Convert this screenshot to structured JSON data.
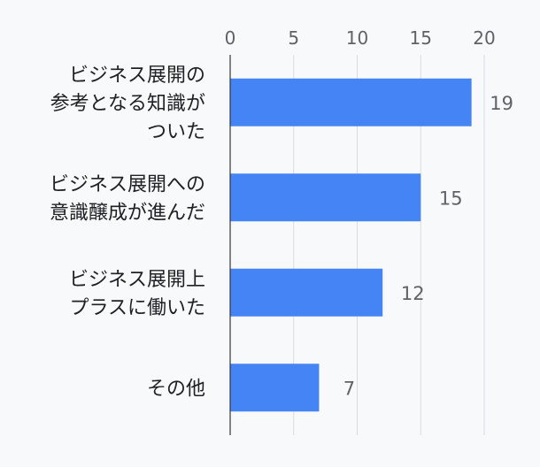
{
  "chart_data": {
    "type": "bar",
    "orientation": "horizontal",
    "categories": [
      [
        "ビジネス展開の",
        "参考となる知識が",
        "ついた"
      ],
      [
        "ビジネス展開への",
        "意識醸成が進んだ"
      ],
      [
        "ビジネス展開上",
        "プラスに働いた"
      ],
      [
        "その他"
      ]
    ],
    "values": [
      19,
      15,
      12,
      7
    ],
    "xlim": [
      0,
      20
    ],
    "ticks": [
      0,
      5,
      10,
      15,
      20
    ],
    "tick_labels": [
      "0",
      "5",
      "10",
      "15",
      "20"
    ],
    "axis_position": "top",
    "grid": true,
    "legend": "none",
    "bar_color": "#4584f5",
    "gridline_color": "#dadce0",
    "axis_line_color": "#333333",
    "tick_label_color": "#5f6368",
    "category_label_color": "#202124",
    "value_label_color": "#5f6368",
    "background": "#f8f9fa"
  }
}
